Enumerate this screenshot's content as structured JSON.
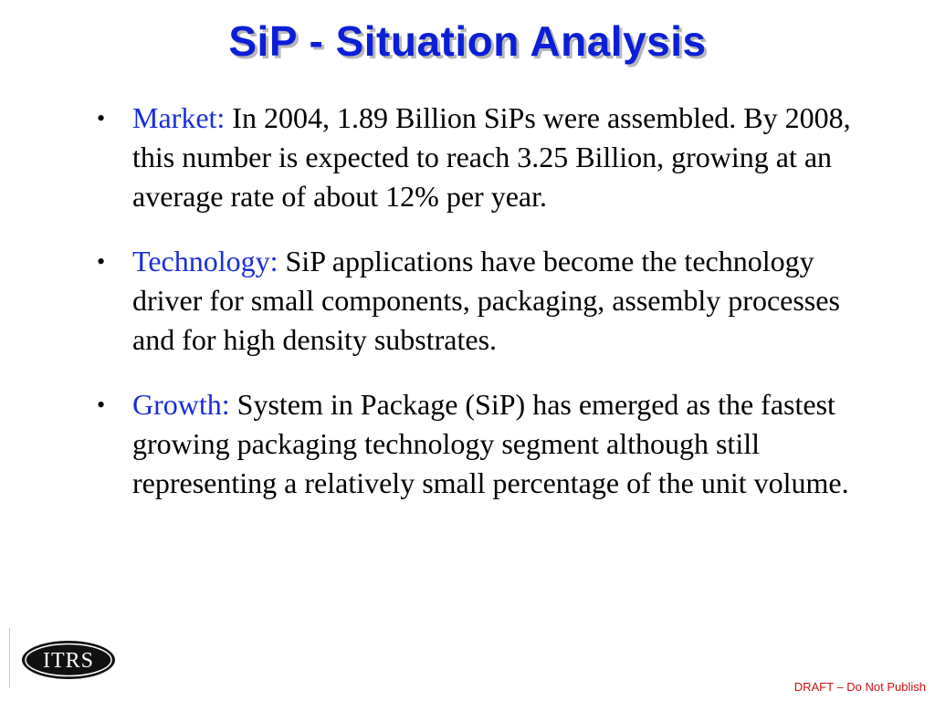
{
  "slide": {
    "title": "SiP - Situation Analysis",
    "bullets": [
      {
        "label": "Market:",
        "text": "In 2004, 1.89 Billion SiPs were assembled.  By 2008, this number is expected to reach 3.25 Billion, growing at an average rate of about 12% per year."
      },
      {
        "label": "Technology:",
        "text": "SiP applications have become the technology driver for small components, packaging, assembly processes and for high density substrates."
      },
      {
        "label": "Growth:",
        "text": "System in Package (SiP) has emerged as the fastest growing packaging technology segment although still representing a relatively small percentage of the unit volume."
      }
    ],
    "bullet_symbol": "•"
  },
  "footer": {
    "logo_text": "ITRS",
    "note": "DRAFT – Do Not Publish"
  },
  "colors": {
    "title": "#0a1fd6",
    "label": "#1a2ed8",
    "body_text": "#000000",
    "footer_note": "#d01010"
  }
}
